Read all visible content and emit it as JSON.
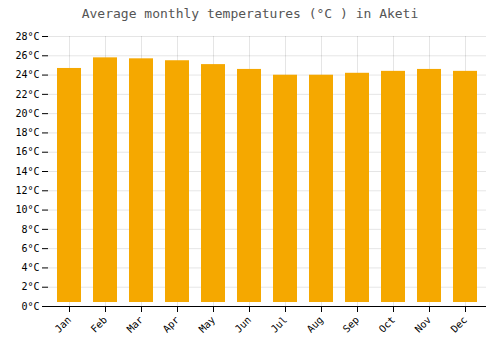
{
  "chart_data": {
    "type": "bar",
    "title": "Average monthly temperatures (°C ) in Aketi",
    "categories": [
      "Jan",
      "Feb",
      "Mar",
      "Apr",
      "May",
      "Jun",
      "Jul",
      "Aug",
      "Sep",
      "Oct",
      "Nov",
      "Dec"
    ],
    "values": [
      25.1,
      26.2,
      26.1,
      25.9,
      25.5,
      25.0,
      24.4,
      24.4,
      24.6,
      24.8,
      25.0,
      24.8
    ],
    "color": "#F5A800",
    "ylim": [
      0,
      28
    ],
    "yticks": [
      {
        "value": 0,
        "label": "0°C"
      },
      {
        "value": 2,
        "label": "2°C"
      },
      {
        "value": 4,
        "label": "4°C"
      },
      {
        "value": 6,
        "label": "6°C"
      },
      {
        "value": 8,
        "label": "8°C"
      },
      {
        "value": 10,
        "label": "10°C"
      },
      {
        "value": 12,
        "label": "12°C"
      },
      {
        "value": 14,
        "label": "14°C"
      },
      {
        "value": 16,
        "label": "16°C"
      },
      {
        "value": 18,
        "label": "18°C"
      },
      {
        "value": 20,
        "label": "20°C"
      },
      {
        "value": 22,
        "label": "22°C"
      },
      {
        "value": 24,
        "label": "24°C"
      },
      {
        "value": 26,
        "label": "26°C"
      },
      {
        "value": 28,
        "label": "28°C"
      }
    ],
    "grid": true
  }
}
